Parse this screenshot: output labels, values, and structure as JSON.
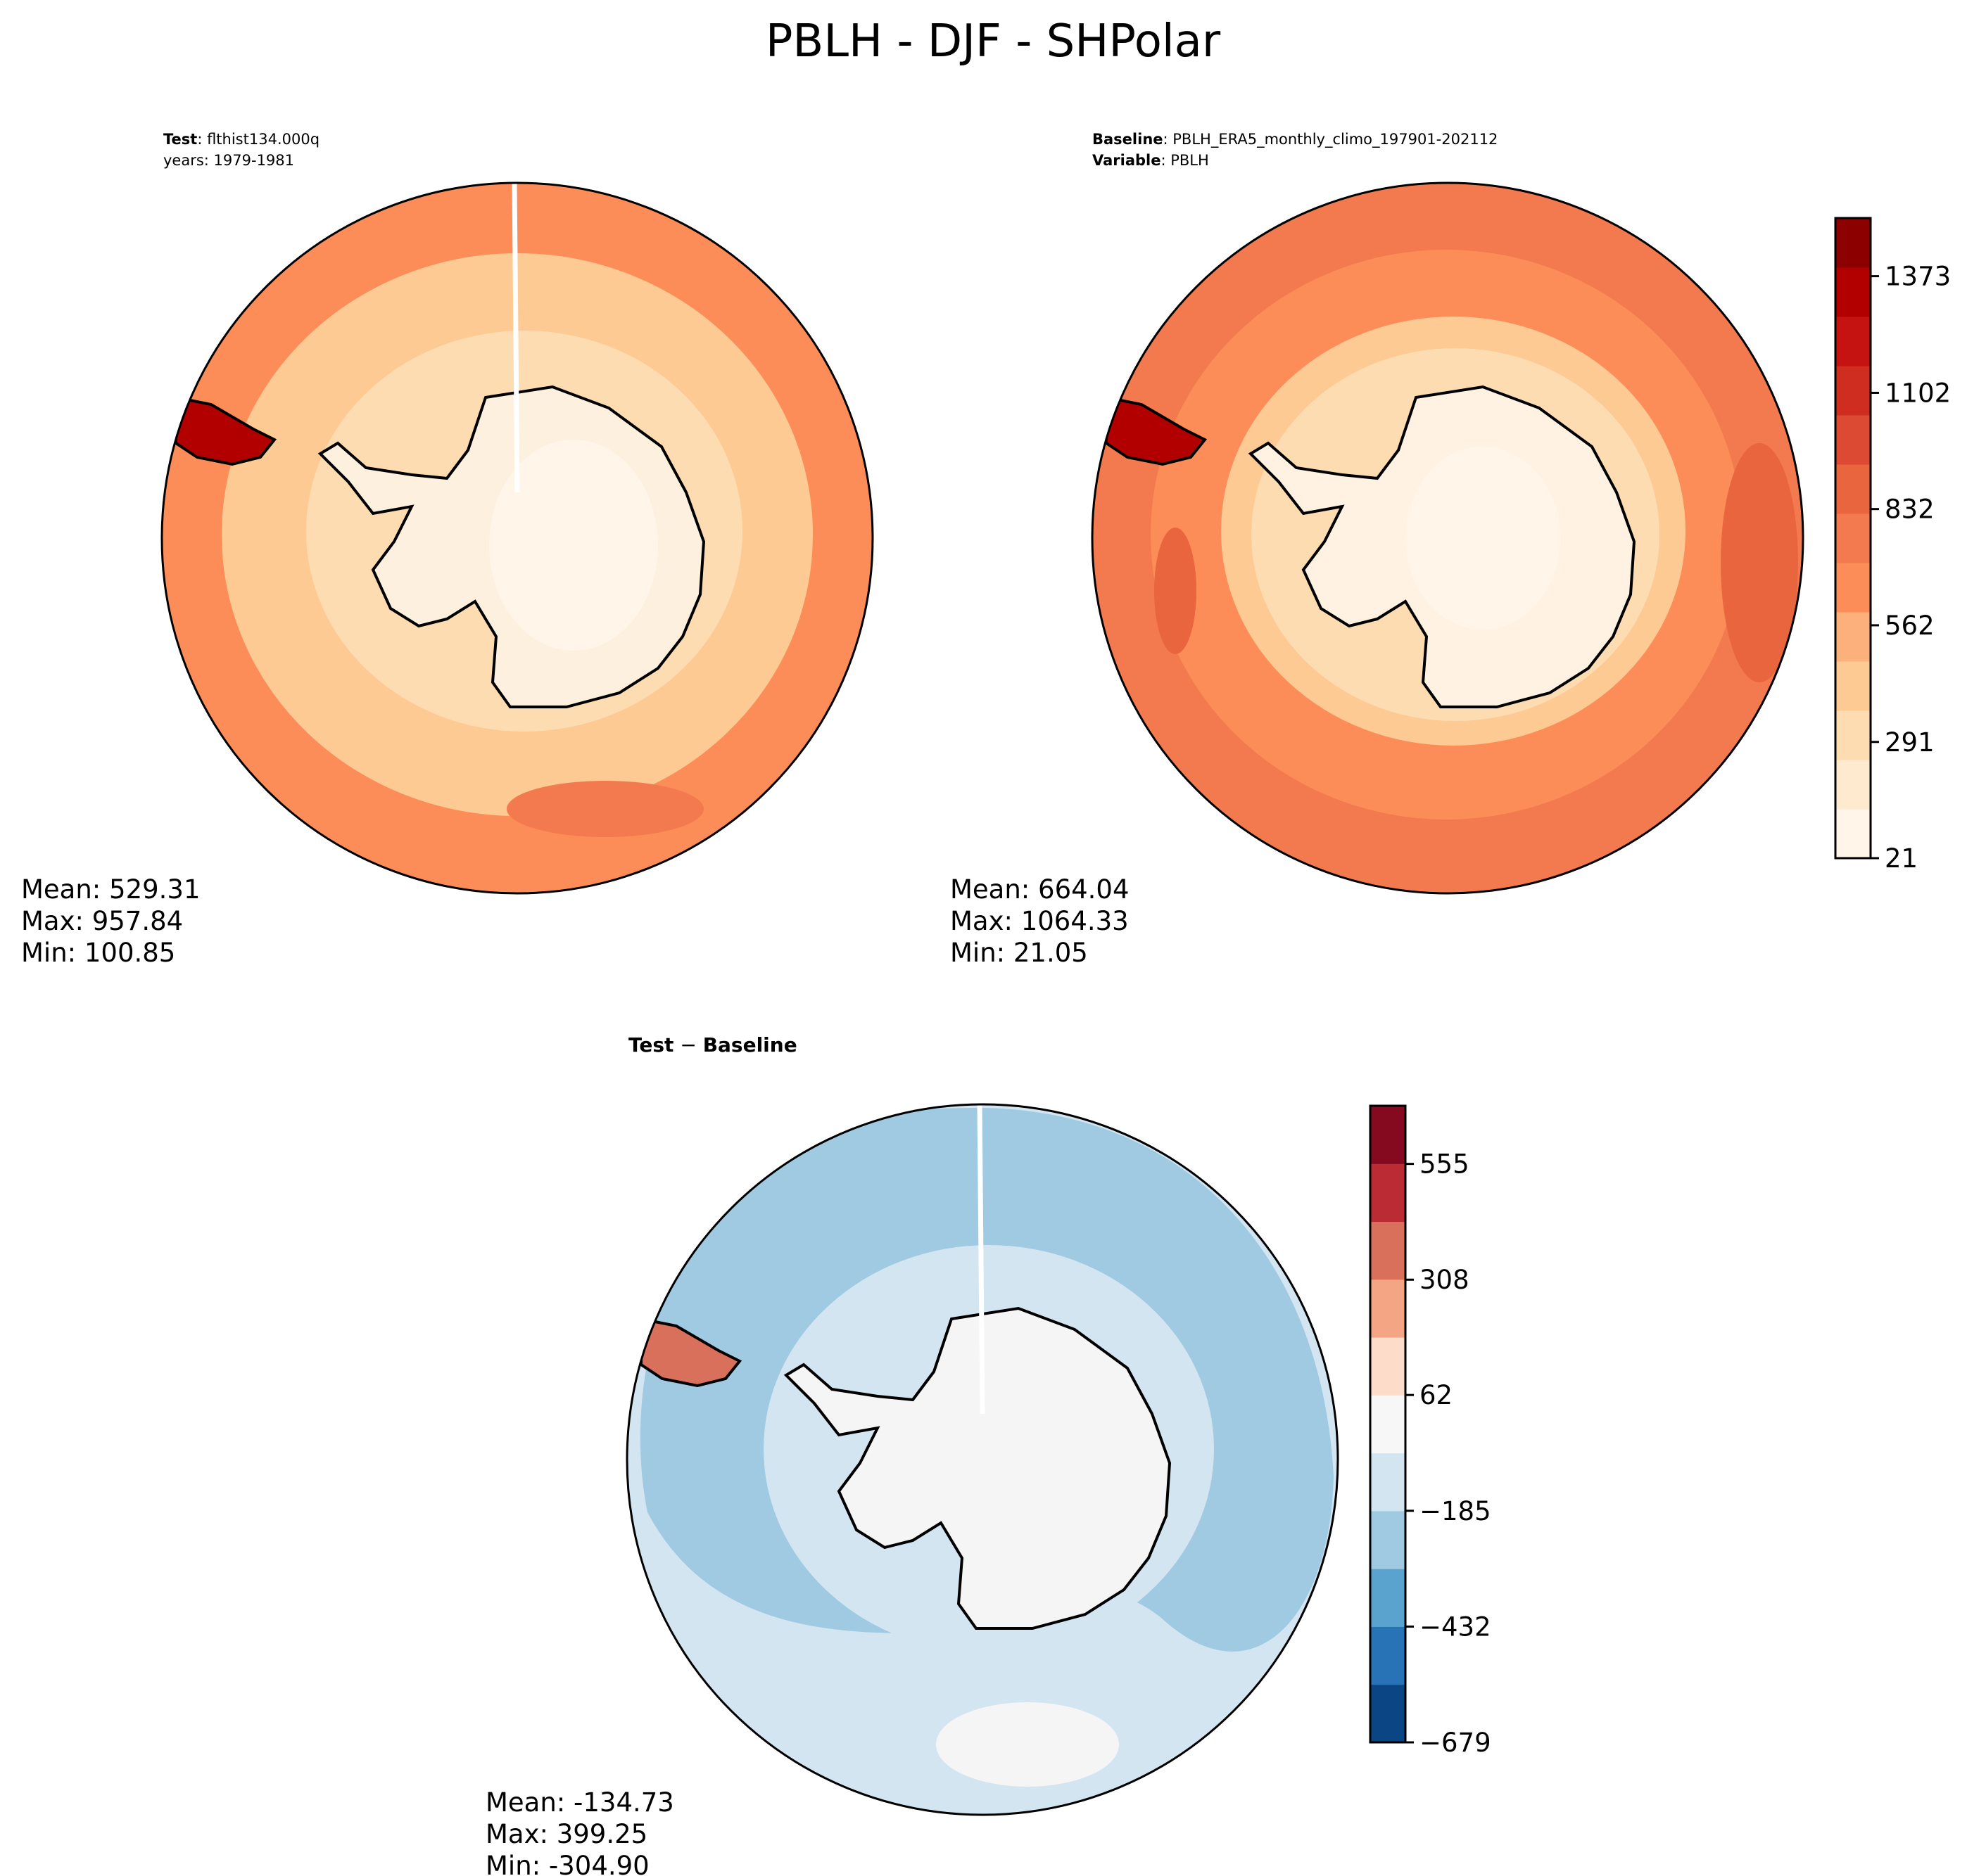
{
  "title": "PBLH - DJF - SHPolar",
  "panels": {
    "test": {
      "header_bold": "Test",
      "header_value": ": flthist134.000q",
      "header_line2": "years: 1979-1981",
      "stats": {
        "mean": "Mean: 529.31",
        "max": "Max: 957.84",
        "min": "Min: 100.85"
      }
    },
    "baseline": {
      "header_bold": "Baseline",
      "header_value": ": PBLH_ERA5_monthly_climo_197901-202112",
      "header2_bold": "Variable",
      "header2_value": ": PBLH",
      "stats": {
        "mean": "Mean: 664.04",
        "max": "Max: 1064.33",
        "min": "Min: 21.05"
      }
    },
    "diff": {
      "header_bold": "Test",
      "header_minus": " − ",
      "header_bold2": "Baseline",
      "stats": {
        "mean": "Mean: -134.73",
        "max": "Max: 399.25",
        "min": "Min: -304.90"
      }
    }
  },
  "chart_data": [
    {
      "type": "heatmap",
      "title": "",
      "projection": "south-polar-stereographic",
      "region": "SHPolar",
      "variable": "PBLH",
      "season": "DJF",
      "stats": {
        "mean": 529.31,
        "max": 957.84,
        "min": 100.85
      }
    },
    {
      "type": "heatmap",
      "title": "",
      "projection": "south-polar-stereographic",
      "region": "SHPolar",
      "variable": "PBLH",
      "season": "DJF",
      "stats": {
        "mean": 664.04,
        "max": 1064.33,
        "min": 21.05
      },
      "colorbar": {
        "ticks": [
          "21",
          "291",
          "562",
          "832",
          "1102",
          "1373"
        ],
        "tick_values": [
          21,
          291,
          562,
          832,
          1102,
          1373
        ],
        "range": [
          21,
          1508
        ],
        "colormap": "OrRd",
        "colors": [
          "#fff5e9",
          "#feeacf",
          "#fedcb1",
          "#fdca94",
          "#fcb07c",
          "#fc8d59",
          "#f27a4e",
          "#e9653e",
          "#dd4a33",
          "#cf2d20",
          "#c41310",
          "#b20000",
          "#8c0000"
        ]
      }
    },
    {
      "type": "heatmap",
      "title": "",
      "projection": "south-polar-stereographic",
      "region": "SHPolar",
      "variable": "PBLH",
      "season": "DJF",
      "stats": {
        "mean": -134.73,
        "max": 399.25,
        "min": -304.9
      },
      "colorbar": {
        "ticks": [
          "−679",
          "−432",
          "−185",
          "62",
          "308",
          "555"
        ],
        "tick_values": [
          -679,
          -432,
          -185,
          62,
          308,
          555
        ],
        "range": [
          -679,
          679
        ],
        "colormap": "RdBu_r",
        "colors": [
          "#0b4583",
          "#2873b6",
          "#5ba3cf",
          "#9fcae1",
          "#d3e5f1",
          "#f7f7f7",
          "#fddcc9",
          "#f4a583",
          "#d8705c",
          "#bb2b33",
          "#85091f"
        ]
      }
    }
  ],
  "colors": {
    "test_ocean": "#fc8d59",
    "test_mid": "#fdca94",
    "test_inner": "#fedcb1",
    "test_continent": "#fef0df",
    "base_ocean": "#f27a4e",
    "base_mid": "#fc8d59",
    "base_inner": "#fdca94",
    "base_continent": "#fff2e2",
    "diff_ocean": "#d3e5f1",
    "diff_band": "#9fcae1",
    "diff_continent": "#f5f5f5",
    "diff_positive": "#fddcc9",
    "peninsula_hot": "#b20000"
  }
}
